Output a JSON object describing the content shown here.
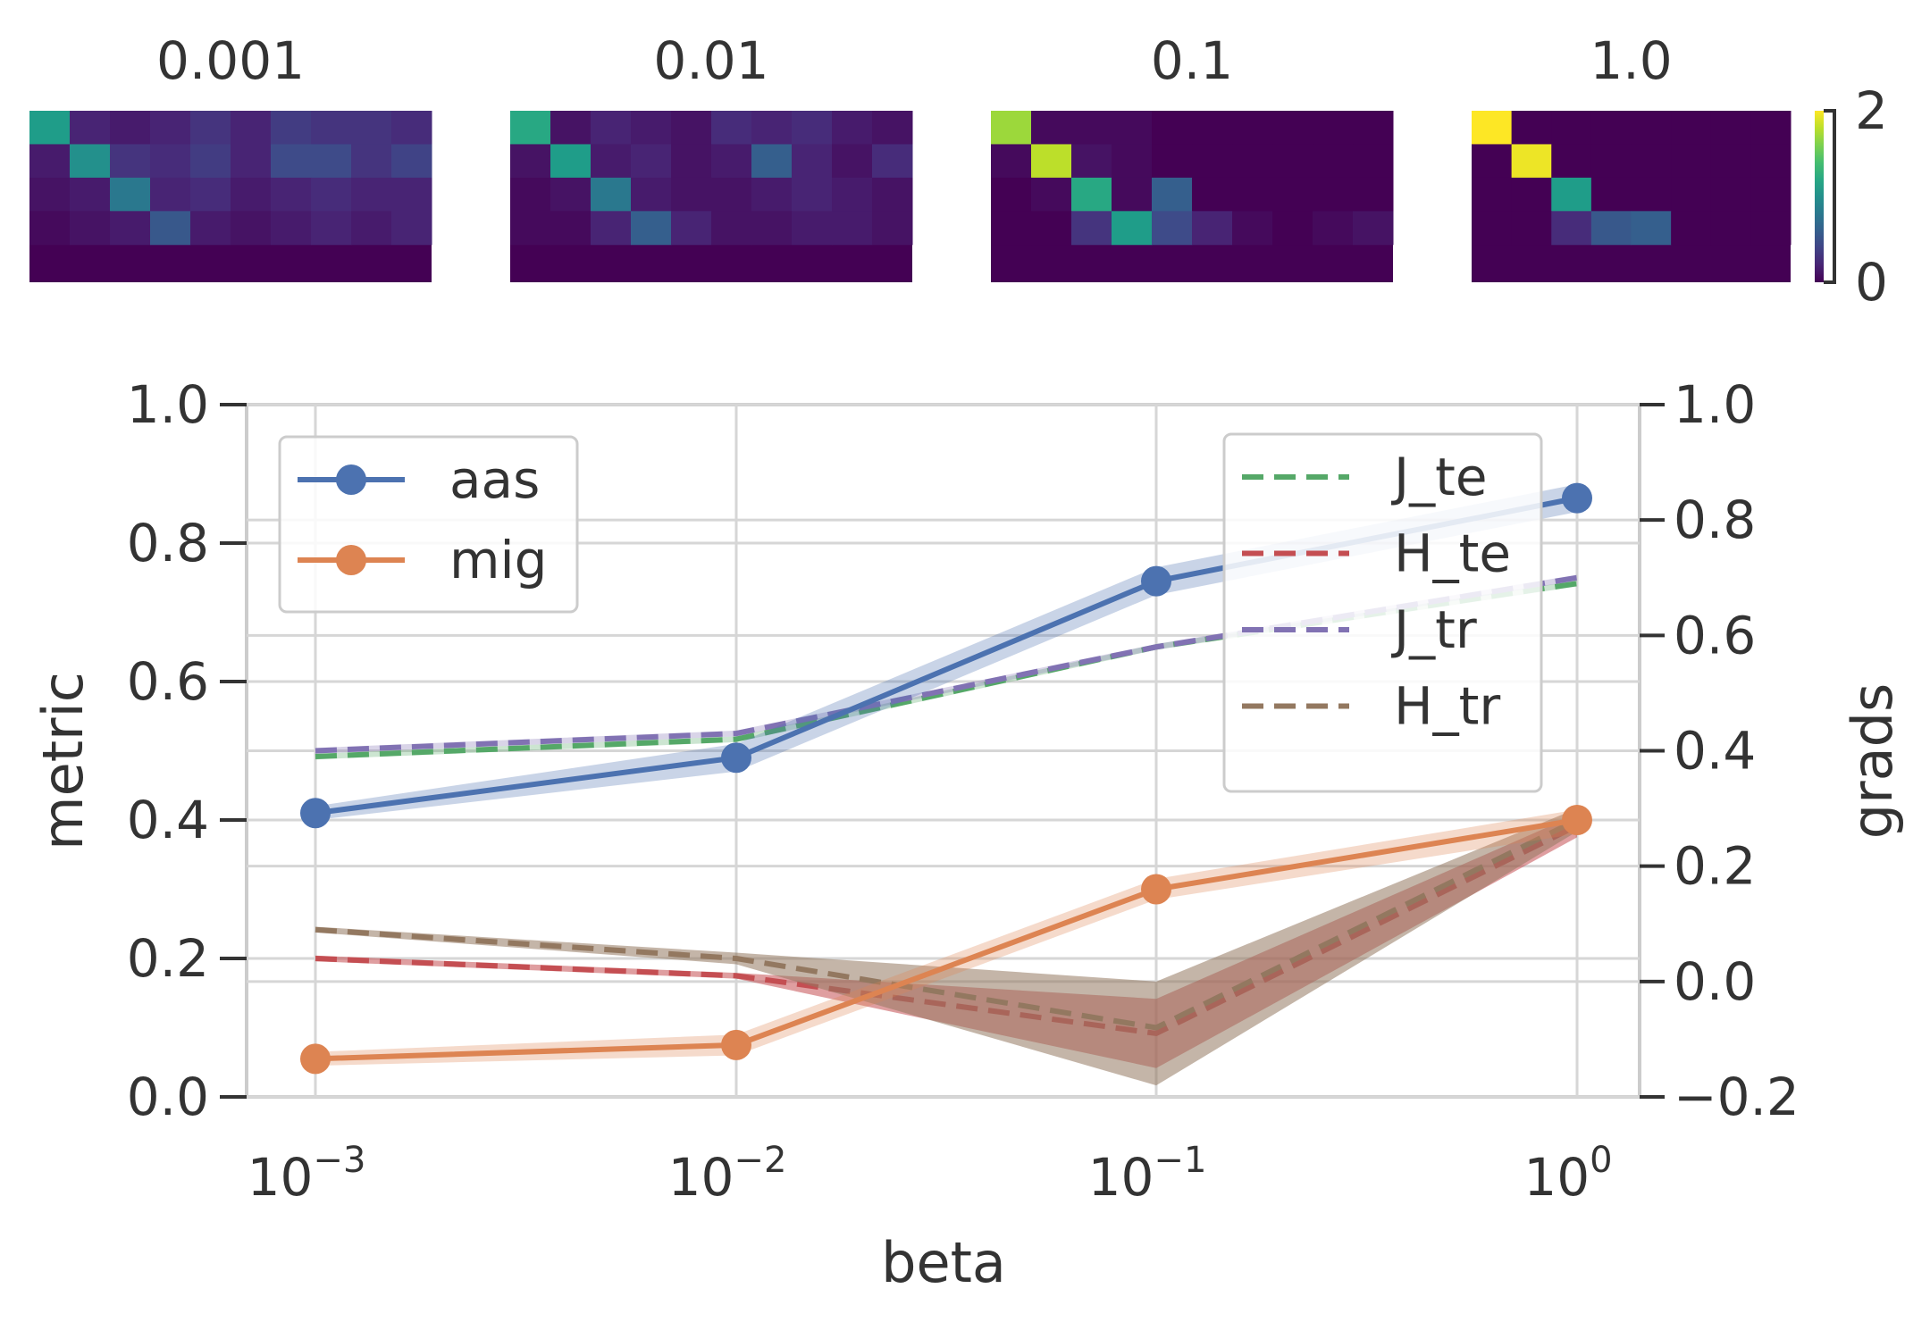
{
  "chart_data": [
    {
      "type": "heatmap",
      "panels": [
        {
          "title": "0.001",
          "rows": 4,
          "cols": 10,
          "cells": [
            [
              1.1,
              0.2,
              0.15,
              0.2,
              0.3,
              0.2,
              0.35,
              0.3,
              0.3,
              0.25
            ],
            [
              0.15,
              1.0,
              0.3,
              0.25,
              0.35,
              0.2,
              0.45,
              0.45,
              0.3,
              0.4
            ],
            [
              0.1,
              0.15,
              0.8,
              0.2,
              0.25,
              0.15,
              0.2,
              0.25,
              0.2,
              0.2
            ],
            [
              0.05,
              0.1,
              0.15,
              0.55,
              0.15,
              0.1,
              0.15,
              0.2,
              0.15,
              0.2
            ]
          ]
        },
        {
          "title": "0.01",
          "rows": 4,
          "cols": 10,
          "cells": [
            [
              1.2,
              0.1,
              0.2,
              0.15,
              0.1,
              0.25,
              0.2,
              0.25,
              0.15,
              0.1
            ],
            [
              0.1,
              1.1,
              0.15,
              0.2,
              0.1,
              0.15,
              0.6,
              0.2,
              0.1,
              0.25
            ],
            [
              0.05,
              0.1,
              0.8,
              0.15,
              0.1,
              0.1,
              0.15,
              0.2,
              0.15,
              0.1
            ],
            [
              0.05,
              0.05,
              0.2,
              0.6,
              0.2,
              0.1,
              0.1,
              0.15,
              0.15,
              0.1
            ]
          ]
        },
        {
          "title": "0.1",
          "rows": 4,
          "cols": 10,
          "cells": [
            [
              1.7,
              0.05,
              0.05,
              0.05,
              0.0,
              0.0,
              0.0,
              0.0,
              0.0,
              0.0
            ],
            [
              0.05,
              1.8,
              0.1,
              0.05,
              0.0,
              0.0,
              0.0,
              0.0,
              0.0,
              0.0
            ],
            [
              0.0,
              0.05,
              1.2,
              0.05,
              0.6,
              0.0,
              0.0,
              0.0,
              0.0,
              0.0
            ],
            [
              0.0,
              0.0,
              0.3,
              1.1,
              0.45,
              0.2,
              0.05,
              0.0,
              0.05,
              0.1
            ]
          ]
        },
        {
          "title": "1.0",
          "rows": 4,
          "cols": 8,
          "cells": [
            [
              2.0,
              0.0,
              0.0,
              0.0,
              0.0,
              0.0,
              0.0,
              0.0
            ],
            [
              0.0,
              1.95,
              0.0,
              0.0,
              0.0,
              0.0,
              0.0,
              0.0
            ],
            [
              0.0,
              0.0,
              1.1,
              0.0,
              0.0,
              0.0,
              0.0,
              0.0
            ],
            [
              0.0,
              0.0,
              0.25,
              0.55,
              0.6,
              0.0,
              0.0,
              0.0
            ]
          ]
        }
      ],
      "colorbar": {
        "ticks": [
          "2",
          "0"
        ],
        "vmin": 0,
        "vmax": 2,
        "colormap": "viridis"
      }
    },
    {
      "type": "line",
      "xlabel": "beta",
      "ylabel": "metric",
      "ylabel_right": "grads",
      "xscale": "log",
      "x": [
        0.001,
        0.01,
        0.1,
        1.0
      ],
      "x_ticks": [
        {
          "base": "10",
          "exp": "−3"
        },
        {
          "base": "10",
          "exp": "−2"
        },
        {
          "base": "10",
          "exp": "−1"
        },
        {
          "base": "10",
          "exp": "0"
        }
      ],
      "ylim": [
        0.0,
        1.0
      ],
      "y_ticks": [
        "0.0",
        "0.2",
        "0.4",
        "0.6",
        "0.8",
        "1.0"
      ],
      "ylim_right": [
        -0.2,
        1.0
      ],
      "y_ticks_right": [
        "−0.2",
        "0.0",
        "0.2",
        "0.4",
        "0.6",
        "0.8",
        "1.0"
      ],
      "grid": true,
      "series": [
        {
          "name": "aas",
          "axis": "left",
          "style": "solid-marker",
          "color": "#4c72b0",
          "values": [
            0.41,
            0.49,
            0.745,
            0.865
          ],
          "band_low": [
            0.4,
            0.47,
            0.725,
            0.845
          ],
          "band_high": [
            0.42,
            0.51,
            0.765,
            0.885
          ]
        },
        {
          "name": "mig",
          "axis": "left",
          "style": "solid-marker",
          "color": "#dd8452",
          "values": [
            0.055,
            0.075,
            0.3,
            0.4
          ],
          "band_low": [
            0.045,
            0.06,
            0.285,
            0.38
          ],
          "band_high": [
            0.065,
            0.09,
            0.315,
            0.415
          ]
        },
        {
          "name": "J_te",
          "axis": "right",
          "style": "dashed",
          "color": "#55a868",
          "values": [
            0.39,
            0.42,
            0.58,
            0.69
          ],
          "band_low": [
            0.385,
            0.415,
            0.575,
            0.685
          ],
          "band_high": [
            0.395,
            0.425,
            0.585,
            0.695
          ]
        },
        {
          "name": "H_te",
          "axis": "right",
          "style": "dashed",
          "color": "#c44e52",
          "values": [
            0.04,
            0.01,
            -0.09,
            0.27
          ],
          "band_low": [
            0.035,
            0.005,
            -0.15,
            0.25
          ],
          "band_high": [
            0.045,
            0.015,
            -0.03,
            0.29
          ]
        },
        {
          "name": "J_tr",
          "axis": "right",
          "style": "dashed",
          "color": "#8172b3",
          "values": [
            0.4,
            0.43,
            0.58,
            0.7
          ],
          "band_low": [
            0.395,
            0.425,
            0.575,
            0.695
          ],
          "band_high": [
            0.405,
            0.435,
            0.585,
            0.705
          ]
        },
        {
          "name": "H_tr",
          "axis": "right",
          "style": "dashed",
          "color": "#937860",
          "values": [
            0.09,
            0.04,
            -0.08,
            0.28
          ],
          "band_low": [
            0.085,
            0.03,
            -0.18,
            0.26
          ],
          "band_high": [
            0.095,
            0.05,
            0.0,
            0.3
          ]
        }
      ],
      "legend_left": [
        "aas",
        "mig"
      ],
      "legend_right": [
        "J_te",
        "H_te",
        "J_tr",
        "H_tr"
      ],
      "legend_placement": [
        "top-left",
        "top-right"
      ]
    }
  ]
}
